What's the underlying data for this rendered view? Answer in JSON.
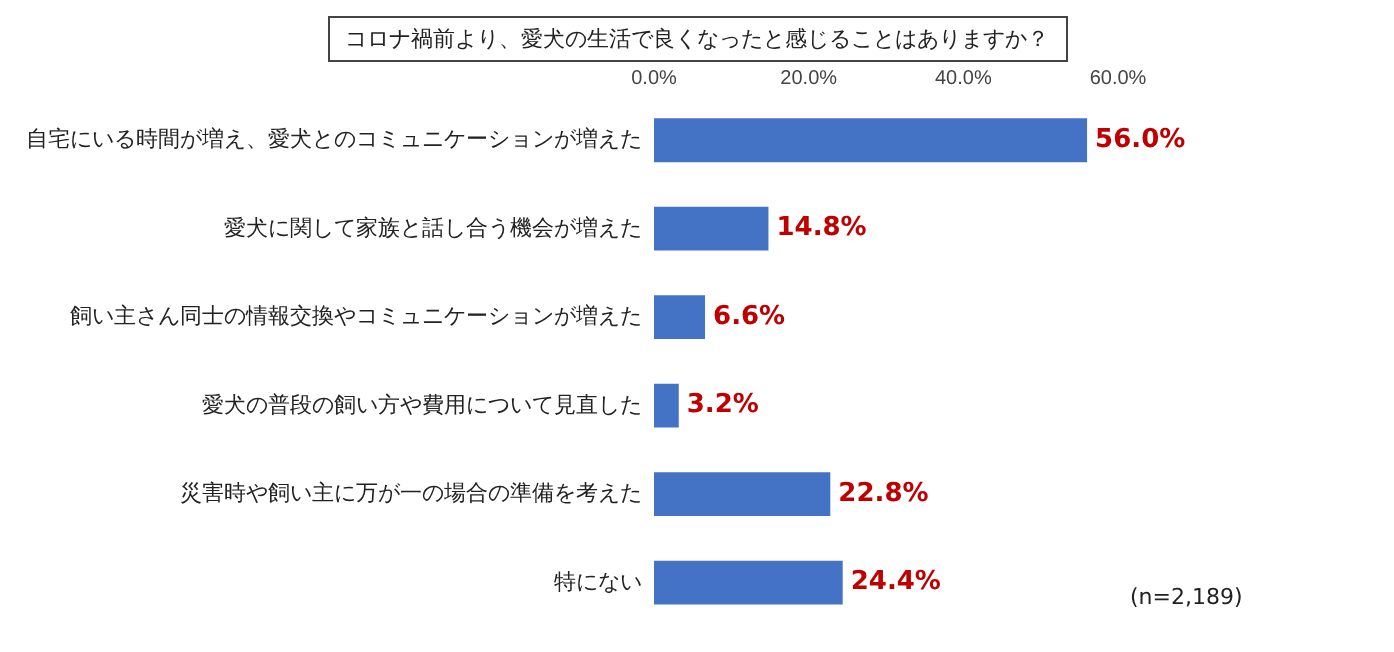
{
  "chart_data": {
    "type": "bar",
    "orientation": "horizontal",
    "title": "コロナ禍前より、愛犬の生活で良くなったと感じることはありますか？",
    "categories": [
      "自宅にいる時間が増え、愛犬とのコミュニケーションが増えた",
      "愛犬に関して家族と話し合う機会が増えた",
      "飼い主さん同士の情報交換やコミュニケーションが増えた",
      "愛犬の普段の飼い方や費用について見直した",
      "災害時や飼い主に万が一の場合の準備を考えた",
      "特にない"
    ],
    "values": [
      56.0,
      14.8,
      6.6,
      3.2,
      22.8,
      24.4
    ],
    "value_labels": [
      "56.0%",
      "14.8%",
      "6.6%",
      "3.2%",
      "22.8%",
      "24.4%"
    ],
    "color": "#4472c4",
    "xlim": [
      0,
      60
    ],
    "xticks": [
      {
        "value": 0,
        "label": "0.0%"
      },
      {
        "value": 20,
        "label": "20.0%"
      },
      {
        "value": 40,
        "label": "40.0%"
      },
      {
        "value": 60,
        "label": "60.0%"
      }
    ],
    "grid": false,
    "legend": false,
    "annotations": [
      "(n=2,189)"
    ]
  }
}
